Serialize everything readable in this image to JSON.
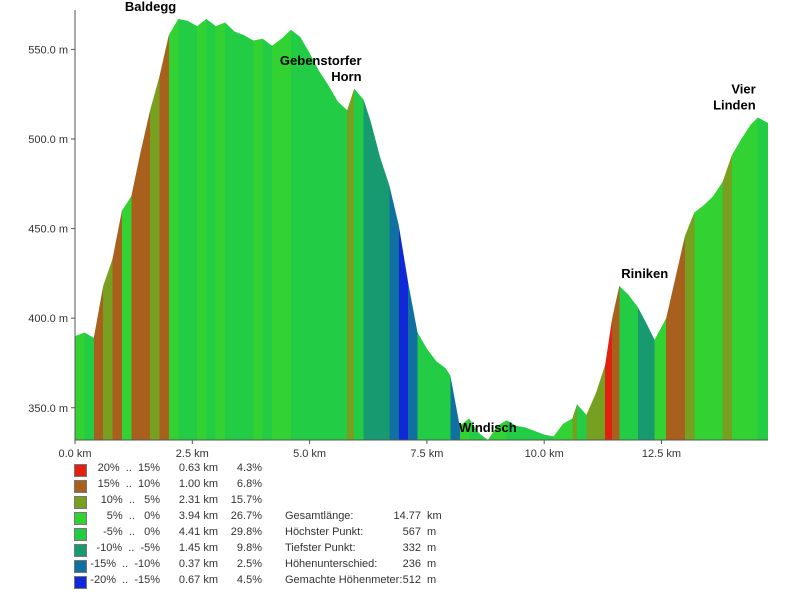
{
  "chart_data": {
    "type": "area",
    "x_unit_suffix": " km",
    "y_unit_suffix": " m",
    "xlim": [
      0,
      14.77
    ],
    "ylim": [
      332,
      567
    ],
    "x_ticks": [
      0,
      2.5,
      5,
      7.5,
      10,
      12.5
    ],
    "x_tick_labels": [
      "0.0 km",
      "2.5 km",
      "5.0 km",
      "7.5 km",
      "10.0 km",
      "12.5 km"
    ],
    "y_ticks": [
      350,
      400,
      450,
      500,
      550
    ],
    "y_tick_labels": [
      "350.0 m",
      "400.0 m",
      "450.0 m",
      "500.0 m",
      "550.0 m"
    ],
    "grid": false,
    "profile": [
      {
        "x": 0.0,
        "y": 390
      },
      {
        "x": 0.2,
        "y": 392
      },
      {
        "x": 0.4,
        "y": 389
      },
      {
        "x": 0.6,
        "y": 418
      },
      {
        "x": 0.8,
        "y": 433
      },
      {
        "x": 1.0,
        "y": 460
      },
      {
        "x": 1.2,
        "y": 468
      },
      {
        "x": 1.4,
        "y": 493
      },
      {
        "x": 1.6,
        "y": 516
      },
      {
        "x": 1.8,
        "y": 535
      },
      {
        "x": 2.0,
        "y": 558
      },
      {
        "x": 2.2,
        "y": 567
      },
      {
        "x": 2.4,
        "y": 566
      },
      {
        "x": 2.6,
        "y": 563
      },
      {
        "x": 2.8,
        "y": 567
      },
      {
        "x": 3.0,
        "y": 563
      },
      {
        "x": 3.2,
        "y": 565
      },
      {
        "x": 3.4,
        "y": 560
      },
      {
        "x": 3.6,
        "y": 558
      },
      {
        "x": 3.8,
        "y": 555
      },
      {
        "x": 4.0,
        "y": 556
      },
      {
        "x": 4.2,
        "y": 552
      },
      {
        "x": 4.4,
        "y": 556
      },
      {
        "x": 4.6,
        "y": 561
      },
      {
        "x": 4.8,
        "y": 557
      },
      {
        "x": 5.0,
        "y": 548
      },
      {
        "x": 5.2,
        "y": 538
      },
      {
        "x": 5.4,
        "y": 530
      },
      {
        "x": 5.6,
        "y": 521
      },
      {
        "x": 5.8,
        "y": 516
      },
      {
        "x": 5.95,
        "y": 528
      },
      {
        "x": 6.15,
        "y": 522
      },
      {
        "x": 6.3,
        "y": 510
      },
      {
        "x": 6.5,
        "y": 490
      },
      {
        "x": 6.7,
        "y": 474
      },
      {
        "x": 6.9,
        "y": 452
      },
      {
        "x": 7.1,
        "y": 420
      },
      {
        "x": 7.3,
        "y": 392
      },
      {
        "x": 7.5,
        "y": 383
      },
      {
        "x": 7.7,
        "y": 376
      },
      {
        "x": 7.9,
        "y": 372
      },
      {
        "x": 8.0,
        "y": 368
      },
      {
        "x": 8.1,
        "y": 354
      },
      {
        "x": 8.2,
        "y": 340
      },
      {
        "x": 8.4,
        "y": 344
      },
      {
        "x": 8.6,
        "y": 336
      },
      {
        "x": 8.8,
        "y": 332
      },
      {
        "x": 9.0,
        "y": 340
      },
      {
        "x": 9.2,
        "y": 343
      },
      {
        "x": 9.4,
        "y": 340
      },
      {
        "x": 9.6,
        "y": 339
      },
      {
        "x": 9.8,
        "y": 337
      },
      {
        "x": 10.0,
        "y": 335
      },
      {
        "x": 10.2,
        "y": 334
      },
      {
        "x": 10.4,
        "y": 341
      },
      {
        "x": 10.6,
        "y": 344
      },
      {
        "x": 10.7,
        "y": 352
      },
      {
        "x": 10.9,
        "y": 346
      },
      {
        "x": 11.1,
        "y": 358
      },
      {
        "x": 11.3,
        "y": 374
      },
      {
        "x": 11.45,
        "y": 400
      },
      {
        "x": 11.6,
        "y": 418
      },
      {
        "x": 11.8,
        "y": 413
      },
      {
        "x": 12.0,
        "y": 406
      },
      {
        "x": 12.2,
        "y": 396
      },
      {
        "x": 12.35,
        "y": 388
      },
      {
        "x": 12.6,
        "y": 400
      },
      {
        "x": 12.8,
        "y": 423
      },
      {
        "x": 13.0,
        "y": 446
      },
      {
        "x": 13.2,
        "y": 459
      },
      {
        "x": 13.4,
        "y": 463
      },
      {
        "x": 13.6,
        "y": 468
      },
      {
        "x": 13.8,
        "y": 476
      },
      {
        "x": 14.0,
        "y": 491
      },
      {
        "x": 14.2,
        "y": 500
      },
      {
        "x": 14.4,
        "y": 508
      },
      {
        "x": 14.55,
        "y": 512
      },
      {
        "x": 14.77,
        "y": 509
      }
    ],
    "peak_labels": [
      {
        "lines": [
          "Baldegg"
        ],
        "x": 2.2,
        "y": 567,
        "anchor": "end"
      },
      {
        "lines": [
          "Gebenstorfer",
          "Horn"
        ],
        "x": 6.15,
        "y": 528,
        "anchor": "end"
      },
      {
        "lines": [
          "Windisch"
        ],
        "x": 8.8,
        "y": 332,
        "anchor": "middle"
      },
      {
        "lines": [
          "Riniken"
        ],
        "x": 11.6,
        "y": 418,
        "anchor": "start"
      },
      {
        "lines": [
          "Vier",
          "Linden"
        ],
        "x": 14.55,
        "y": 512,
        "anchor": "end"
      }
    ],
    "gradient_classes": [
      {
        "range": "20%  ..  15%",
        "distance": "0.63 km",
        "percent": "4.3%",
        "color": "#e02010"
      },
      {
        "range": "15%  ..  10%",
        "distance": "1.00 km",
        "percent": "6.8%",
        "color": "#a8601c"
      },
      {
        "range": "10%  ..   5%",
        "distance": "2.31 km",
        "percent": "15.7%",
        "color": "#77a020"
      },
      {
        "range": "5%  ..   0%",
        "distance": "3.94 km",
        "percent": "26.7%",
        "color": "#32d232"
      },
      {
        "range": "-5%  ..   0%",
        "distance": "4.41 km",
        "percent": "29.8%",
        "color": "#22cc44"
      },
      {
        "range": "-10%  ..  -5%",
        "distance": "1.45 km",
        "percent": "9.8%",
        "color": "#189a70"
      },
      {
        "range": "-15%  ..  -10%",
        "distance": "0.37 km",
        "percent": "2.5%",
        "color": "#1070a0"
      },
      {
        "range": "-20%  ..  -15%",
        "distance": "0.67 km",
        "percent": "4.5%",
        "color": "#1028d8"
      }
    ]
  },
  "stats": [
    {
      "label": "Gesamtlänge:",
      "value": "14.77",
      "unit": "km"
    },
    {
      "label": "Höchster Punkt:",
      "value": "567",
      "unit": "m"
    },
    {
      "label": "Tiefster Punkt:",
      "value": "332",
      "unit": "m"
    },
    {
      "label": "Höhenunterschied:",
      "value": "236",
      "unit": "m"
    },
    {
      "label": "Gemachte Höhenmeter:",
      "value": "512",
      "unit": "m"
    }
  ],
  "colors": {
    "axis": "#555555",
    "label_text": "#333333",
    "steep_up": "#e02010",
    "flat": "#32d232",
    "steep_down": "#1028d8"
  }
}
